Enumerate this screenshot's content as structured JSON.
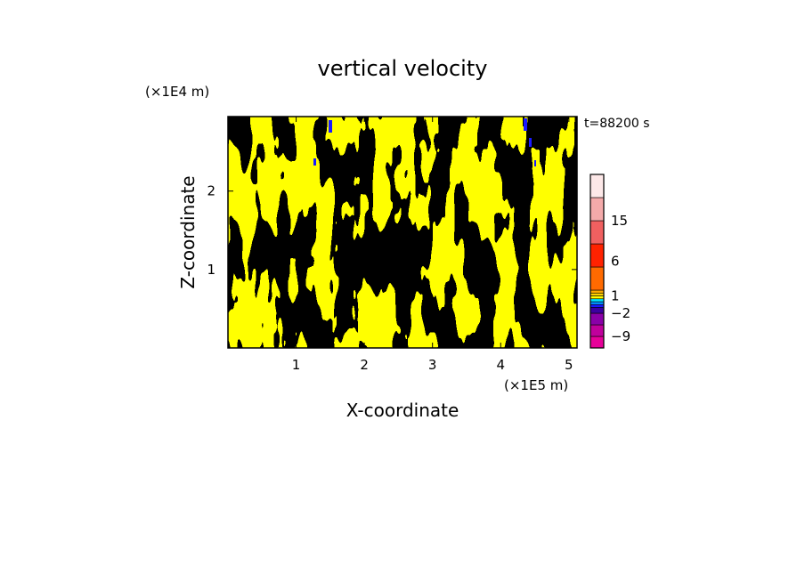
{
  "chart_data": {
    "type": "heatmap",
    "title": "vertical velocity",
    "xlabel": "X-coordinate",
    "ylabel": "Z-coordinate",
    "x_unit": "(×1E5 m)",
    "y_unit": "(×1E4 m)",
    "time_label": "t=88200 s",
    "xlim": [
      0,
      5.12
    ],
    "ylim": [
      0,
      2.95
    ],
    "x_ticks": [
      {
        "value": 1,
        "label": "1"
      },
      {
        "value": 2,
        "label": "2"
      },
      {
        "value": 3,
        "label": "3"
      },
      {
        "value": 4,
        "label": "4"
      },
      {
        "value": 5,
        "label": "5"
      }
    ],
    "y_ticks": [
      {
        "value": 1,
        "label": "1"
      },
      {
        "value": 2,
        "label": "2"
      }
    ],
    "colorbar": {
      "labels": [
        {
          "slot": 11,
          "label": "15"
        },
        {
          "slot": 7.5,
          "label": "6"
        },
        {
          "slot": 4.5,
          "label": "1"
        },
        {
          "slot": 3,
          "label": "−2"
        },
        {
          "slot": 1,
          "label": "−9"
        }
      ],
      "bands": [
        {
          "slot": 0,
          "color": "#e60099"
        },
        {
          "slot": 1,
          "color": "#c0009c"
        },
        {
          "slot": 2,
          "color": "#8a00a8"
        },
        {
          "slot": 3,
          "color": "#3c00a0"
        },
        {
          "slot": 3.5,
          "color": "#1a1aff"
        },
        {
          "slot": 3.75,
          "color": "#0090ff"
        },
        {
          "slot": 4,
          "color": "#00e5ff"
        },
        {
          "slot": 4.25,
          "color": "#ffff00"
        },
        {
          "slot": 4.5,
          "color": "#ffd200"
        },
        {
          "slot": 4.75,
          "color": "#ffaa00"
        },
        {
          "slot": 5,
          "color": "#ff6a00"
        },
        {
          "slot": 7,
          "color": "#ff2200"
        },
        {
          "slot": 9,
          "color": "#f06060"
        },
        {
          "slot": 11,
          "color": "#f4aaaa"
        },
        {
          "slot": 13,
          "color": "#fde8e8"
        }
      ],
      "slots_total": 15
    },
    "field_colors": {
      "positive": "#ffff00",
      "negative": "#00e5ff",
      "strong_negative": "#1a1aff"
    }
  }
}
